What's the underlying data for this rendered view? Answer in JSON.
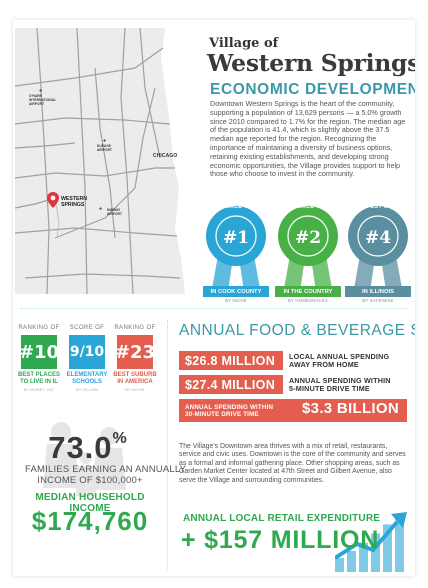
{
  "header": {
    "title_small": "Village of",
    "title_big": "Western Springs",
    "subtitle": "ECONOMIC DEVELOPMENT",
    "intro": "Downtown Western Springs is the heart of the community, supporting a population of 13,629 persons — a 5.0% growth since 2010 compared to 1.7% for the region. The median age of the population is 41.4, which is slightly above the 37.5 median age reported for the region. Recognizing the importance of maintaining a diversity of business options, retaining existing establishments, and developing strong economic opportunities, the Village provides support to help those who choose to invest in the community."
  },
  "map": {
    "airport_north_label": "O'HARE\nINTERNATIONAL\nAIRPORT",
    "airport_south_label": "MIDWAY\nAIRPORT",
    "airport_small_label": "DUPAGE\nAIRPORT",
    "city_label": "CHICAGO",
    "marker_label": "WESTERN\nSPRINGS",
    "colors": {
      "roads": "#9a9a9a",
      "land": "#e9e9e9",
      "lake": "#ffffff",
      "marker": "#e0343a"
    }
  },
  "ribbons": [
    {
      "arc": "BEST PLACE TO LIVE",
      "number": "#1",
      "band": "IN COOK COUNTY",
      "source": "BY NICHE",
      "color": "#2aa6d6"
    },
    {
      "arc": "BEST PLACE TO LIVE",
      "number": "#2",
      "band": "IN THE COUNTRY",
      "source": "BY HOMESNACKS",
      "color": "#49b048"
    },
    {
      "arc": "SAFEST CITY",
      "number": "#4",
      "band": "IN ILLINOIS",
      "source": "BY SAFEWISE",
      "color": "#5a8fa0"
    }
  ],
  "ranks": [
    {
      "top": "RANKING OF",
      "value": "#10",
      "label": "BEST PLACES\nTO LIVE IN IL",
      "source": "BY MONEY, INC",
      "color": "#2fa84f"
    },
    {
      "top": "SCORE OF",
      "value": "9/10",
      "label": "ELEMENTARY\nSCHOOLS",
      "source": "BY ZILLOW",
      "color": "#2aa6d6"
    },
    {
      "top": "RANKING OF",
      "value": "#23",
      "label": "BEST SUBURB\nIN AMERICA",
      "source": "BY NICHE",
      "color": "#e35e4e"
    }
  ],
  "families": {
    "percent": "73.0",
    "percent_sign": "%",
    "text": "FAMILIES EARNING AN ANNUALLY\nINCOME OF $100,000+",
    "income_label": "MEDIAN HOUSEHOLD INCOME",
    "income_value": "$174,760"
  },
  "food_beverage": {
    "title": "ANNUAL FOOD & BEVERAGE SALES",
    "row1_value": "$26.8 MILLION",
    "row1_desc": "LOCAL ANNUAL SPENDING\nAWAY FROM HOME",
    "row2_value": "$27.4 MILLION",
    "row2_desc": "ANNUAL SPENDING WITHIN\n5-MINUTE DRIVE TIME",
    "row3_label": "ANNUAL SPENDING WITHIN\n30-MINUTE DRIVE TIME",
    "row3_value": "$3.3 BILLION",
    "body": "The Village's Downtown area thrives with a mix of retail, restaurants, service and civic uses. Downtown is the core of the community and serves as a formal and informal gathering place. Other shopping areas, such as Garden Market Center located at 47th Street and Gilbert Avenue, also serve the Village and surrounding communities.",
    "color": "#e35e4e"
  },
  "retail": {
    "label": "ANNUAL LOCAL RETAIL EXPENDITURE",
    "value": "+ $157 MILLION",
    "color": "#2fa84f"
  },
  "bar_levels": [
    0.2,
    0.3,
    0.42,
    0.55,
    0.68,
    0.82
  ]
}
